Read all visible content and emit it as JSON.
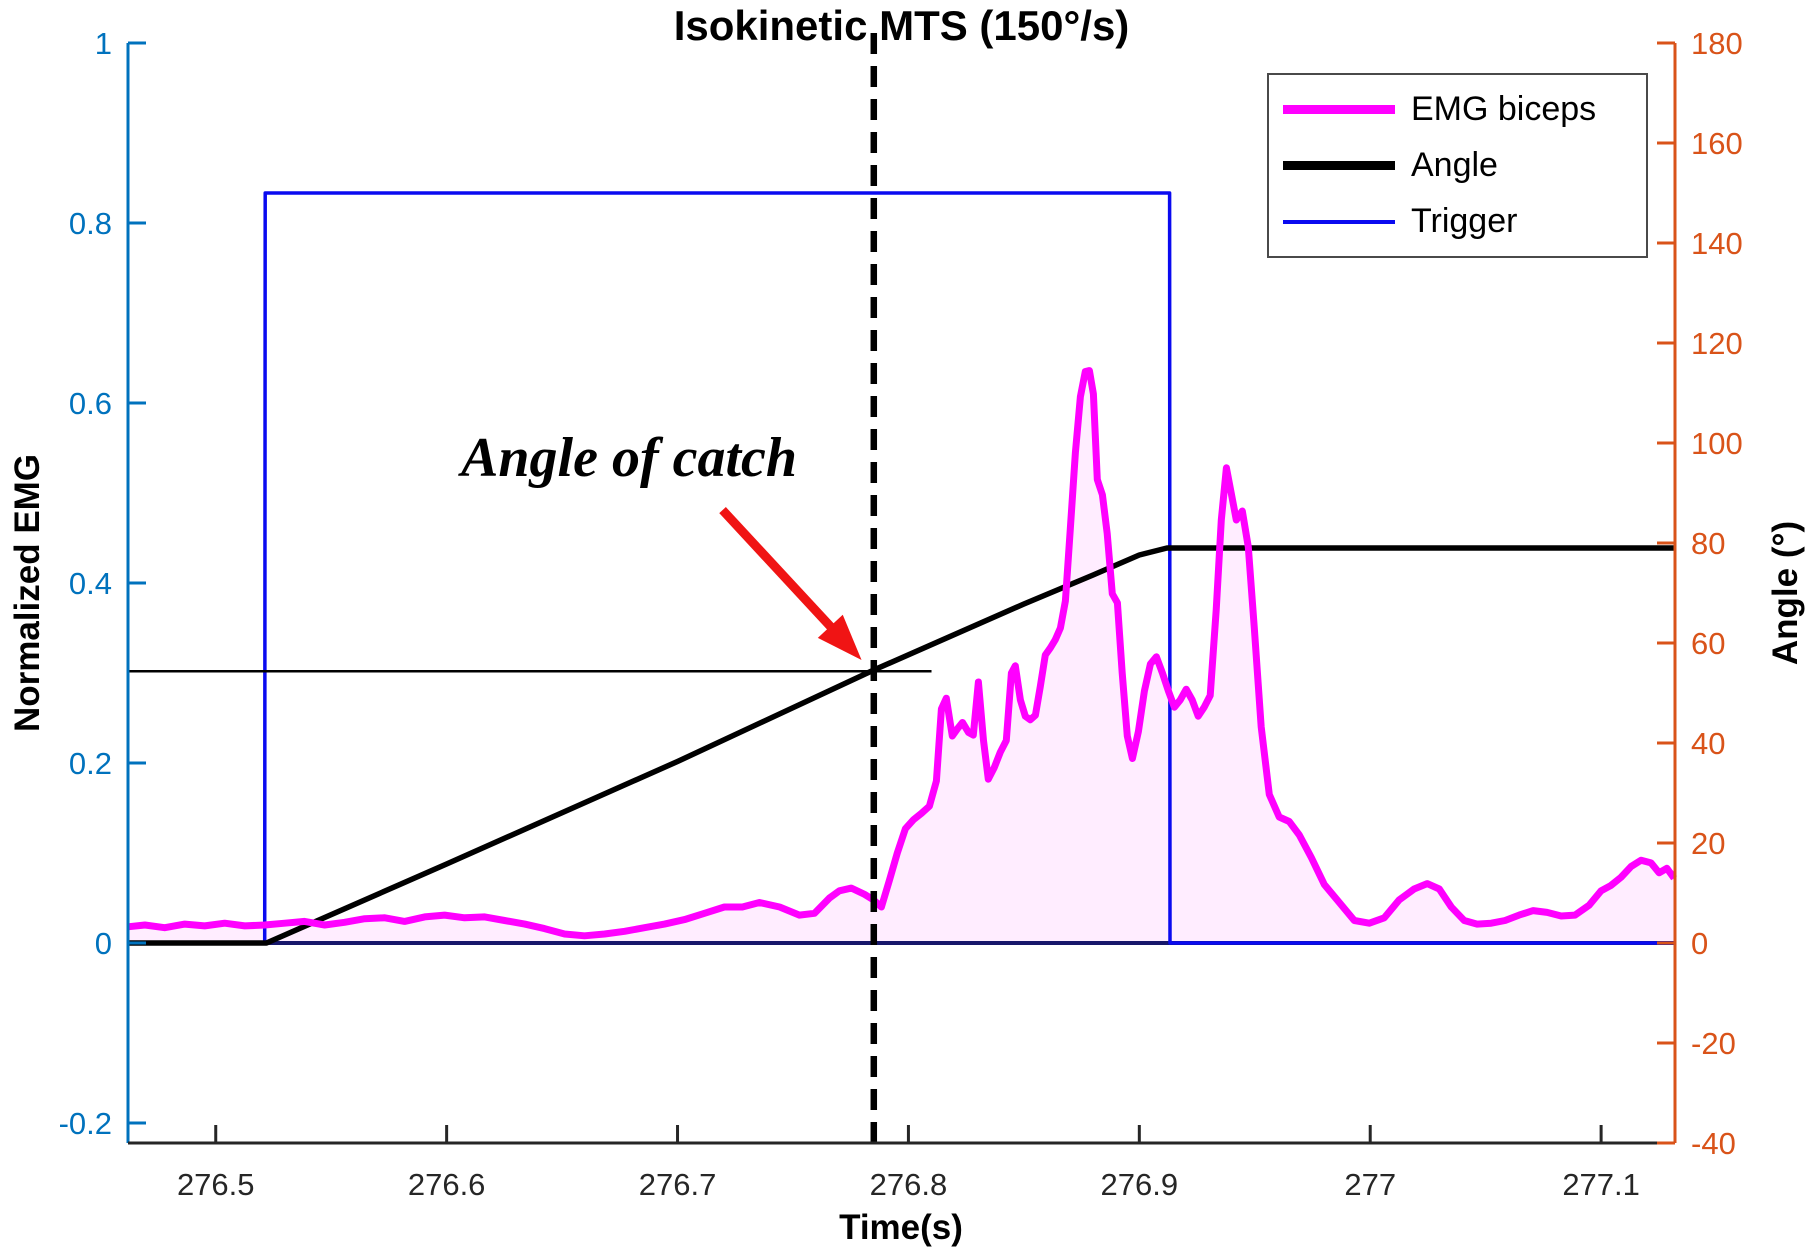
{
  "chart_data": {
    "type": "line",
    "title": "Isokinetic MTS (150°/s)",
    "xlabel": "Time(s)",
    "ylabel_left": "Normalized EMG",
    "ylabel_right": "Angle (°)",
    "grid": false,
    "legend_position": "top-right",
    "axes": {
      "x": {
        "lim": [
          276.462,
          277.132
        ],
        "color": "#262626",
        "ticks": [
          {
            "v": 276.5,
            "label": "276.5"
          },
          {
            "v": 276.6,
            "label": "276.6"
          },
          {
            "v": 276.7,
            "label": "276.7"
          },
          {
            "v": 276.8,
            "label": "276.8"
          },
          {
            "v": 276.9,
            "label": "276.9"
          },
          {
            "v": 277.0,
            "label": "277"
          },
          {
            "v": 277.1,
            "label": "277.1"
          }
        ]
      },
      "y_left": {
        "lim": [
          -0.2222,
          1.0
        ],
        "color": "#0072BD",
        "ticks": [
          {
            "v": 1.0,
            "label": "1"
          },
          {
            "v": 0.8,
            "label": "0.8"
          },
          {
            "v": 0.6,
            "label": "0.6"
          },
          {
            "v": 0.4,
            "label": "0.4"
          },
          {
            "v": 0.2,
            "label": "0.2"
          },
          {
            "v": 0.0,
            "label": "0"
          },
          {
            "v": -0.2,
            "label": "-0.2"
          }
        ]
      },
      "y_right": {
        "lim": [
          -40,
          180
        ],
        "color": "#D95319",
        "ticks": [
          {
            "v": 180,
            "label": "180"
          },
          {
            "v": 160,
            "label": "160"
          },
          {
            "v": 140,
            "label": "140"
          },
          {
            "v": 120,
            "label": "120"
          },
          {
            "v": 100,
            "label": "100"
          },
          {
            "v": 80,
            "label": "80"
          },
          {
            "v": 60,
            "label": "60"
          },
          {
            "v": 40,
            "label": "40"
          },
          {
            "v": 20,
            "label": "20"
          },
          {
            "v": 0,
            "label": "0"
          },
          {
            "v": -20,
            "label": "-20"
          },
          {
            "v": -40,
            "label": "-40"
          }
        ]
      }
    },
    "legend": [
      {
        "label": "EMG biceps",
        "color": "#FF00FF",
        "thickness": 9
      },
      {
        "label": "Angle",
        "color": "#000000",
        "thickness": 9
      },
      {
        "label": "Trigger",
        "color": "#0A0AF0",
        "thickness": 4
      }
    ],
    "series": [
      {
        "name": "EMG biceps",
        "axis": "left",
        "color": "#FF00FF",
        "width": 7,
        "fill": "rgba(255,0,255,0.07)",
        "points": [
          [
            276.4619,
            0.018
          ],
          [
            276.4693,
            0.02
          ],
          [
            276.4779,
            0.017
          ],
          [
            276.4866,
            0.021
          ],
          [
            276.4952,
            0.019
          ],
          [
            276.5039,
            0.022
          ],
          [
            276.5126,
            0.019
          ],
          [
            276.5212,
            0.02
          ],
          [
            276.5299,
            0.022
          ],
          [
            276.5385,
            0.024
          ],
          [
            276.5472,
            0.02
          ],
          [
            276.5558,
            0.023
          ],
          [
            276.5645,
            0.027
          ],
          [
            276.5732,
            0.028
          ],
          [
            276.5818,
            0.024
          ],
          [
            276.5905,
            0.029
          ],
          [
            276.5991,
            0.031
          ],
          [
            276.6078,
            0.028
          ],
          [
            276.6165,
            0.029
          ],
          [
            276.6251,
            0.025
          ],
          [
            276.6338,
            0.021
          ],
          [
            276.6424,
            0.016
          ],
          [
            276.6511,
            0.01
          ],
          [
            276.6597,
            0.008
          ],
          [
            276.6684,
            0.01
          ],
          [
            276.6771,
            0.013
          ],
          [
            276.6857,
            0.017
          ],
          [
            276.6944,
            0.021
          ],
          [
            276.703,
            0.026
          ],
          [
            276.7117,
            0.033
          ],
          [
            276.7203,
            0.04
          ],
          [
            276.7281,
            0.04
          ],
          [
            276.7355,
            0.045
          ],
          [
            276.7442,
            0.04
          ],
          [
            276.7528,
            0.031
          ],
          [
            276.7593,
            0.033
          ],
          [
            276.7658,
            0.05
          ],
          [
            276.7701,
            0.058
          ],
          [
            276.7753,
            0.061
          ],
          [
            276.781,
            0.054
          ],
          [
            276.7848,
            0.048
          ],
          [
            276.7883,
            0.04
          ],
          [
            276.7918,
            0.07
          ],
          [
            276.7952,
            0.1
          ],
          [
            276.7987,
            0.127
          ],
          [
            276.8022,
            0.137
          ],
          [
            276.8056,
            0.144
          ],
          [
            276.8091,
            0.152
          ],
          [
            276.8121,
            0.18
          ],
          [
            276.8143,
            0.26
          ],
          [
            276.8164,
            0.272
          ],
          [
            276.819,
            0.23
          ],
          [
            276.8212,
            0.238
          ],
          [
            276.8234,
            0.245
          ],
          [
            276.826,
            0.234
          ],
          [
            276.8281,
            0.231
          ],
          [
            276.8303,
            0.29
          ],
          [
            276.8325,
            0.225
          ],
          [
            276.8346,
            0.182
          ],
          [
            276.8372,
            0.195
          ],
          [
            276.8398,
            0.212
          ],
          [
            276.8424,
            0.225
          ],
          [
            276.8446,
            0.3
          ],
          [
            276.8463,
            0.308
          ],
          [
            276.8485,
            0.27
          ],
          [
            276.8506,
            0.252
          ],
          [
            276.8528,
            0.248
          ],
          [
            276.855,
            0.253
          ],
          [
            276.8571,
            0.285
          ],
          [
            276.8593,
            0.32
          ],
          [
            276.8615,
            0.328
          ],
          [
            276.8636,
            0.337
          ],
          [
            276.8658,
            0.35
          ],
          [
            276.868,
            0.38
          ],
          [
            276.8701,
            0.46
          ],
          [
            276.8723,
            0.545
          ],
          [
            276.8745,
            0.607
          ],
          [
            276.8766,
            0.635
          ],
          [
            276.8784,
            0.636
          ],
          [
            276.8801,
            0.61
          ],
          [
            276.8818,
            0.515
          ],
          [
            276.884,
            0.498
          ],
          [
            276.8861,
            0.455
          ],
          [
            276.8883,
            0.388
          ],
          [
            276.8905,
            0.378
          ],
          [
            276.8926,
            0.3
          ],
          [
            276.8948,
            0.23
          ],
          [
            276.897,
            0.205
          ],
          [
            276.8996,
            0.235
          ],
          [
            276.9022,
            0.28
          ],
          [
            276.9048,
            0.31
          ],
          [
            276.9074,
            0.318
          ],
          [
            276.91,
            0.3
          ],
          [
            276.9126,
            0.28
          ],
          [
            276.9152,
            0.262
          ],
          [
            276.9177,
            0.27
          ],
          [
            276.9203,
            0.282
          ],
          [
            276.9229,
            0.27
          ],
          [
            276.9255,
            0.252
          ],
          [
            276.9281,
            0.262
          ],
          [
            276.9307,
            0.275
          ],
          [
            276.9333,
            0.37
          ],
          [
            276.9355,
            0.47
          ],
          [
            276.9377,
            0.528
          ],
          [
            276.9398,
            0.5
          ],
          [
            276.942,
            0.47
          ],
          [
            276.9446,
            0.48
          ],
          [
            276.9472,
            0.44
          ],
          [
            276.9498,
            0.35
          ],
          [
            276.9528,
            0.24
          ],
          [
            276.9563,
            0.165
          ],
          [
            276.9606,
            0.14
          ],
          [
            276.9649,
            0.135
          ],
          [
            276.9693,
            0.12
          ],
          [
            276.9745,
            0.095
          ],
          [
            276.9801,
            0.065
          ],
          [
            276.9866,
            0.045
          ],
          [
            276.9931,
            0.025
          ],
          [
            276.9996,
            0.022
          ],
          [
            277.0061,
            0.028
          ],
          [
            277.0126,
            0.048
          ],
          [
            277.019,
            0.06
          ],
          [
            277.0247,
            0.066
          ],
          [
            277.0299,
            0.06
          ],
          [
            277.0351,
            0.04
          ],
          [
            277.0407,
            0.025
          ],
          [
            277.0463,
            0.021
          ],
          [
            277.0524,
            0.022
          ],
          [
            277.0584,
            0.025
          ],
          [
            277.0645,
            0.031
          ],
          [
            277.0706,
            0.036
          ],
          [
            277.0766,
            0.034
          ],
          [
            277.0827,
            0.03
          ],
          [
            277.0887,
            0.031
          ],
          [
            277.0948,
            0.042
          ],
          [
            277.1,
            0.058
          ],
          [
            277.1043,
            0.064
          ],
          [
            277.1086,
            0.073
          ],
          [
            277.113,
            0.085
          ],
          [
            277.1173,
            0.092
          ],
          [
            277.1216,
            0.089
          ],
          [
            277.1251,
            0.078
          ],
          [
            277.1285,
            0.083
          ],
          [
            277.1316,
            0.072
          ]
        ]
      },
      {
        "name": "Angle",
        "axis": "right",
        "color": "#000000",
        "width": 5.5,
        "points": [
          [
            276.462,
            0
          ],
          [
            276.522,
            0
          ],
          [
            276.6,
            15.8
          ],
          [
            276.7,
            36.3
          ],
          [
            276.785,
            54.6
          ],
          [
            276.85,
            67.8
          ],
          [
            276.88,
            73.6
          ],
          [
            276.9,
            77.6
          ],
          [
            276.912,
            79.0
          ],
          [
            277.132,
            79.0
          ]
        ]
      },
      {
        "name": "Trigger",
        "axis": "right",
        "color": "#0A0AF0",
        "width": 3.5,
        "points": [
          [
            276.462,
            0
          ],
          [
            276.5212,
            0
          ],
          [
            276.5214,
            150
          ],
          [
            276.9131,
            150
          ],
          [
            276.9133,
            0
          ],
          [
            277.132,
            0
          ]
        ]
      },
      {
        "name": "zero baseline",
        "axis": "right",
        "color": "#17176B",
        "width": 4,
        "points": [
          [
            276.462,
            0
          ],
          [
            277.132,
            0
          ]
        ]
      }
    ],
    "annotation": {
      "text": "Angle of catch",
      "text_anchor": {
        "t": 276.679,
        "v": 0.539
      },
      "arrow": {
        "color": "#F01414",
        "tail": {
          "t": 276.7195,
          "v": 0.481
        },
        "tip": {
          "t": 276.7797,
          "v": 0.3144
        }
      },
      "vline_t": 276.785,
      "hline": {
        "v": 0.302,
        "t_start": 276.462,
        "t_end": 276.81
      }
    }
  }
}
